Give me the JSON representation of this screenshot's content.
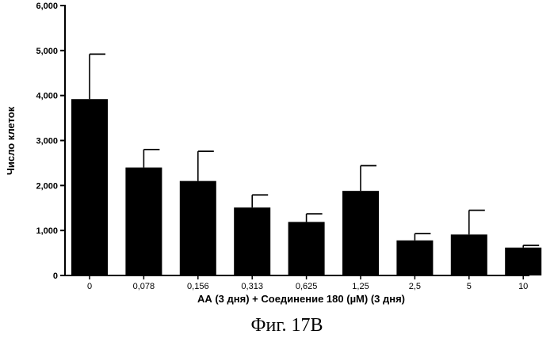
{
  "chart_data": {
    "type": "bar",
    "title": "",
    "xlabel": "АА (3 дня)  + Соединение 180 (µM) (3 дня)",
    "ylabel": "Число клеток",
    "ylim": [
      0,
      6000
    ],
    "yticks": [
      0,
      1000,
      2000,
      3000,
      4000,
      5000,
      6000
    ],
    "ytick_labels": [
      "0",
      "1,000",
      "2,000",
      "3,000",
      "4,000",
      "5,000",
      "6,000"
    ],
    "categories": [
      "0",
      "0,078",
      "0,156",
      "0,313",
      "0,625",
      "1,25",
      "2,5",
      "5",
      "10"
    ],
    "values": [
      3920,
      2400,
      2100,
      1510,
      1190,
      1880,
      780,
      910,
      620
    ],
    "errors": [
      1000,
      400,
      660,
      280,
      180,
      560,
      150,
      540,
      50
    ],
    "error_bars": "upper",
    "grid": false,
    "colors": {
      "bar": "#000000",
      "axis": "#000000"
    }
  },
  "caption": "Фиг. 17В"
}
